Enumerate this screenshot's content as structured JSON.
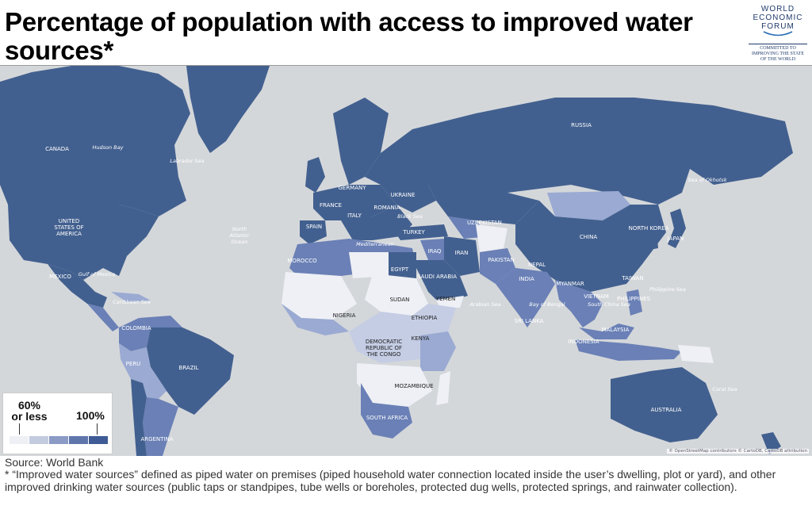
{
  "title": "Percentage of population with access to improved water sources*",
  "logo": {
    "line1": "WORLD",
    "line2": "ECONOMIC",
    "line3": "FORUM",
    "tagline1": "COMMITTED TO",
    "tagline2": "IMPROVING THE STATE",
    "tagline3": "OF THE WORLD"
  },
  "legend": {
    "low_label_1": "60%",
    "low_label_2": "or less",
    "high_label": "100%",
    "scale_colors": [
      "#eef0f5",
      "#c3cbdf",
      "#8b9bc6",
      "#5f76ad",
      "#3f5b96"
    ]
  },
  "colors": {
    "ocean": "#d4d7da",
    "highest": "#42608f",
    "high": "#6a80b6",
    "mid": "#9aaad2",
    "low": "#c4cde4",
    "lowest": "#eef0f5"
  },
  "labels": {
    "canada": "CANADA",
    "usa_1": "UNITED",
    "usa_2": "STATES OF",
    "usa_3": "AMERICA",
    "mexico": "MEXICO",
    "colombia": "COLOMBIA",
    "peru": "PERU",
    "brazil": "BRAZIL",
    "argentina": "ARGENTINA",
    "russia": "RUSSIA",
    "germany": "GERMANY",
    "ukraine": "UKRAINE",
    "france": "FRANCE",
    "italy": "ITALY",
    "romania": "ROMANIA",
    "spain": "SPAIN",
    "turkey": "TURKEY",
    "uzbekistan": "UZBEKISTAN",
    "china": "CHINA",
    "north_korea": "NORTH KOREA",
    "japan": "JAPAN",
    "morocco": "MOROCCO",
    "egypt": "EGYPT",
    "iraq": "IRAQ",
    "iran": "IRAN",
    "saudi_arabia": "SAUDI ARABIA",
    "pakistan": "PAKISTAN",
    "nepal": "NEPAL",
    "india": "INDIA",
    "myanmar": "MYANMAR",
    "taiwan": "TAIWAN",
    "vietnam": "VIETNAM",
    "philippines": "PHILIPPINES",
    "sri_lanka": "SRI LANKA",
    "sudan": "SUDAN",
    "yemen": "YEMEN",
    "ethiopia": "ETHIOPIA",
    "nigeria": "NIGERIA",
    "kenya": "KENYA",
    "drc_1": "DEMOCRATIC",
    "drc_2": "REPUBLIC OF",
    "drc_3": "THE CONGO",
    "mozambique": "MOZAMBIQUE",
    "south_africa": "SOUTH AFRICA",
    "malaysia": "MALAYSIA",
    "indonesia": "INDONESIA",
    "australia": "AUSTRALIA"
  },
  "seas": {
    "hudson_bay": "Hudson Bay",
    "labrador_sea": "Labrador Sea",
    "north_atlantic_1": "North",
    "north_atlantic_2": "Atlantic",
    "north_atlantic_3": "Ocean",
    "gulf_of_mexico": "Gulf of Mexico",
    "caribbean_sea": "Caribbean Sea",
    "mediterranean": "Mediterranean",
    "black_sea": "Black Sea",
    "arabian_sea": "Arabian Sea",
    "bay_of_bengal": "Bay of Bengal",
    "south_china_sea": "South China Sea",
    "philippine_sea": "Philippine Sea",
    "sea_of_okhotsk": "Sea of Okhotsk",
    "coral_sea": "Coral Sea"
  },
  "attribution": "© OpenStreetMap contributors © CartoDB, CartoDB attribution",
  "source": "Source: World Bank",
  "note": "* “Improved water sources” defined as piped water on premises (piped household water connection located inside the user’s dwelling, plot or yard), and other improved drinking water sources (public taps or standpipes, tube wells or boreholes, protected dug wells, protected springs, and rainwater collection)."
}
